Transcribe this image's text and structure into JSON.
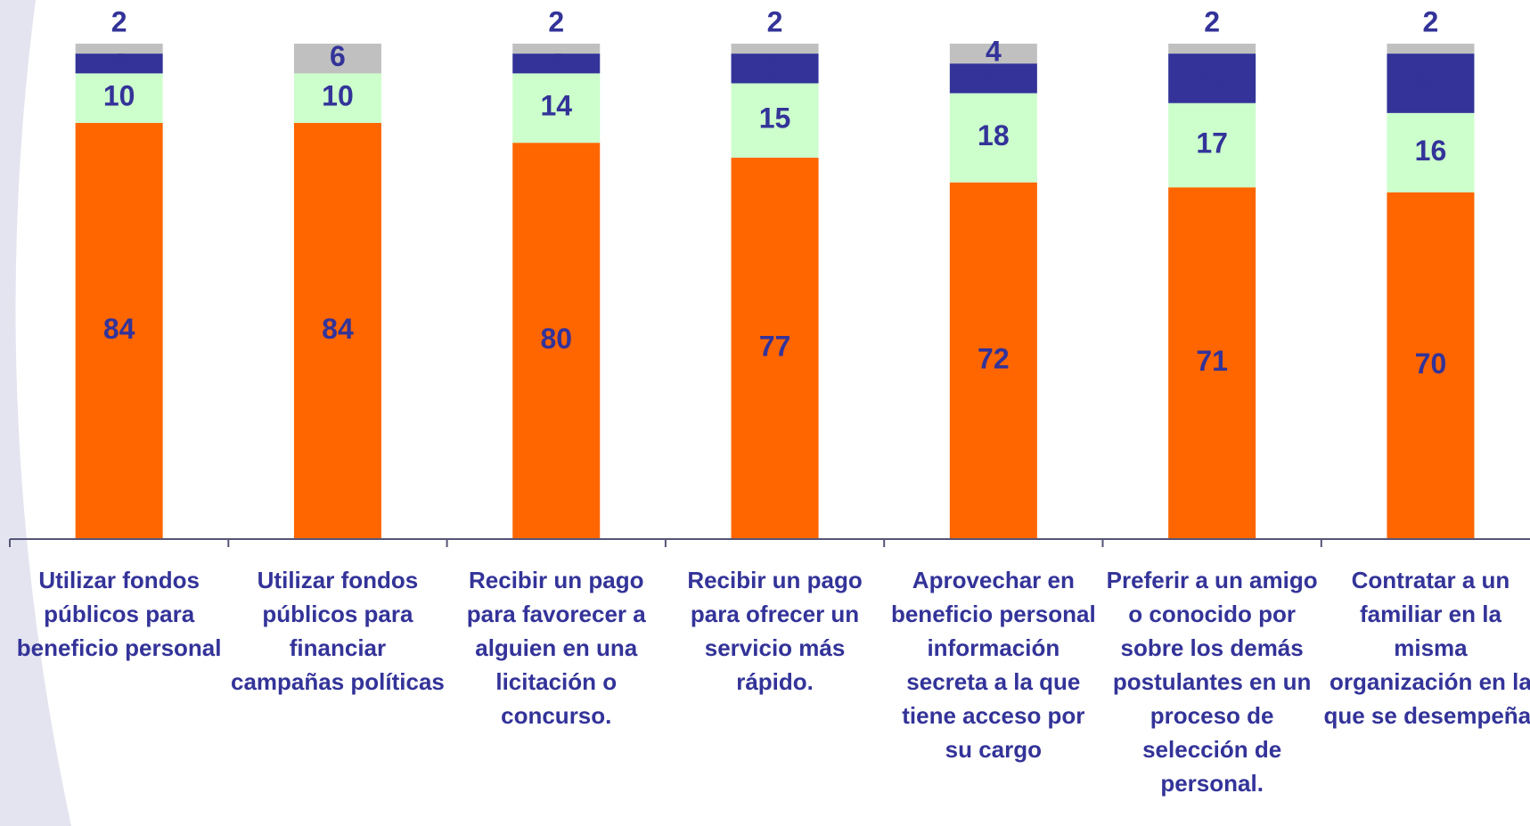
{
  "chart_data": {
    "type": "stacked-bar",
    "categories": [
      "Utilizar fondos públicos para beneficio personal",
      "Utilizar fondos públicos para financiar campañas políticas",
      "Recibir un pago para favorecer a alguien en una licitación o concurso.",
      "Recibir un pago para ofrecer un servicio más rápido.",
      "Aprovechar en beneficio personal información secreta a la que tiene acceso por su cargo",
      "Preferir a un amigo o conocido por sobre los demás postulantes en un proceso de selección de personal.",
      "Contratar a un familiar en la misma organización en la que se desempeña."
    ],
    "series": [
      {
        "color": "#ff6600",
        "values": [
          84,
          84,
          80,
          77,
          72,
          71,
          70
        ]
      },
      {
        "color": "#ccffcc",
        "values": [
          10,
          10,
          14,
          15,
          18,
          17,
          16
        ]
      },
      {
        "color": "#333399",
        "values": [
          4,
          null,
          4,
          6,
          6,
          10,
          12
        ]
      },
      {
        "color": "#c0c0c0",
        "values": [
          2,
          6,
          2,
          2,
          4,
          2,
          2
        ]
      }
    ],
    "ylim": [
      0,
      100
    ]
  }
}
